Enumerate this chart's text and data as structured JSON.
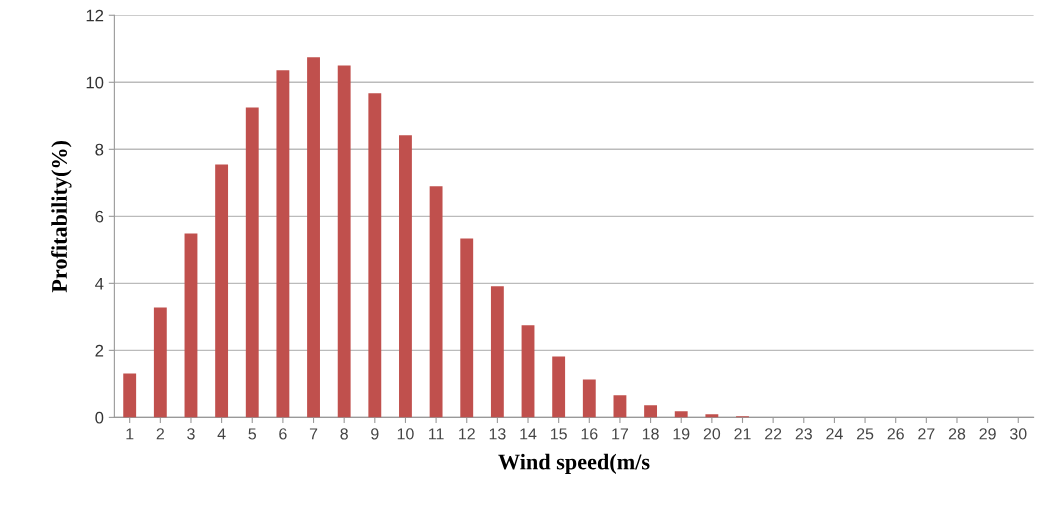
{
  "chart_data": {
    "type": "bar",
    "xlabel": "Wind speed(m/s",
    "ylabel": "Profitability(%)",
    "categories": [
      "1",
      "2",
      "3",
      "4",
      "5",
      "6",
      "7",
      "8",
      "9",
      "10",
      "11",
      "12",
      "13",
      "14",
      "15",
      "16",
      "17",
      "18",
      "19",
      "20",
      "21",
      "22",
      "23",
      "24",
      "25",
      "26",
      "27",
      "28",
      "29",
      "30"
    ],
    "values": [
      1.31,
      3.28,
      5.49,
      7.55,
      9.25,
      10.36,
      10.75,
      10.5,
      9.67,
      8.42,
      6.9,
      5.34,
      3.91,
      2.75,
      1.82,
      1.13,
      0.66,
      0.36,
      0.18,
      0.09,
      0.03,
      0,
      0,
      0,
      0,
      0,
      0,
      0,
      0,
      0
    ],
    "color": "#c0504d",
    "ylim": [
      0,
      12
    ],
    "yticks": [
      0,
      2,
      4,
      6,
      8,
      10,
      12
    ],
    "grid": "y",
    "legend": false
  }
}
